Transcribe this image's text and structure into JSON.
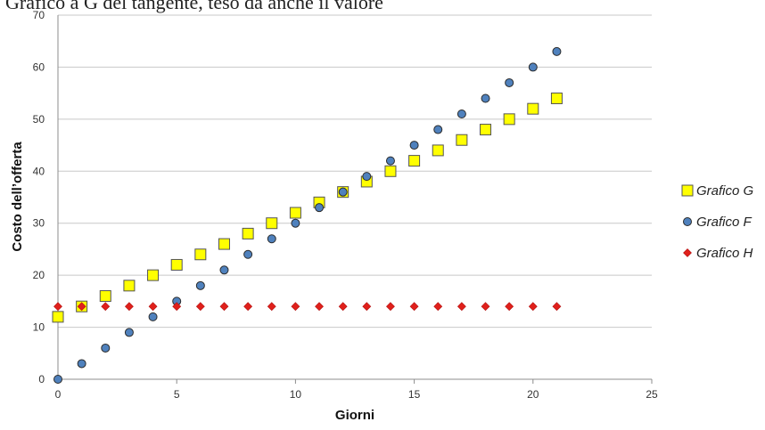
{
  "header_fragment": "Grafico a G del tangente, teso da anche il valore",
  "chart_data": {
    "type": "scatter",
    "title": "",
    "xlabel": "Giorni",
    "ylabel": "Costo dell’offerta",
    "xlim": [
      0,
      25
    ],
    "ylim": [
      0,
      70
    ],
    "x_ticks": [
      0,
      5,
      10,
      15,
      20,
      25
    ],
    "y_ticks": [
      0,
      10,
      20,
      30,
      40,
      50,
      60,
      70
    ],
    "grid": "horizontal",
    "legend_position": "right",
    "series": [
      {
        "name": "Grafico G",
        "marker": "square",
        "color": "#ffff00",
        "x": [
          0,
          1,
          2,
          3,
          4,
          5,
          6,
          7,
          8,
          9,
          10,
          11,
          12,
          13,
          14,
          15,
          16,
          17,
          18,
          19,
          20,
          21
        ],
        "y": [
          12,
          14,
          16,
          18,
          20,
          22,
          24,
          26,
          28,
          30,
          32,
          34,
          36,
          38,
          40,
          42,
          44,
          46,
          48,
          50,
          52,
          54
        ]
      },
      {
        "name": "Grafico F",
        "marker": "circle",
        "color": "#4f81bd",
        "x": [
          0,
          1,
          2,
          3,
          4,
          5,
          6,
          7,
          8,
          9,
          10,
          11,
          12,
          13,
          14,
          15,
          16,
          17,
          18,
          19,
          20,
          21
        ],
        "y": [
          0,
          3,
          6,
          9,
          12,
          15,
          18,
          21,
          24,
          27,
          30,
          33,
          36,
          39,
          42,
          45,
          48,
          51,
          54,
          57,
          60,
          63
        ]
      },
      {
        "name": "Grafico H",
        "marker": "diamond",
        "color": "#e0201b",
        "x": [
          0,
          1,
          2,
          3,
          4,
          5,
          6,
          7,
          8,
          9,
          10,
          11,
          12,
          13,
          14,
          15,
          16,
          17,
          18,
          19,
          20,
          21
        ],
        "y": [
          14,
          14,
          14,
          14,
          14,
          14,
          14,
          14,
          14,
          14,
          14,
          14,
          14,
          14,
          14,
          14,
          14,
          14,
          14,
          14,
          14,
          14
        ]
      }
    ]
  }
}
